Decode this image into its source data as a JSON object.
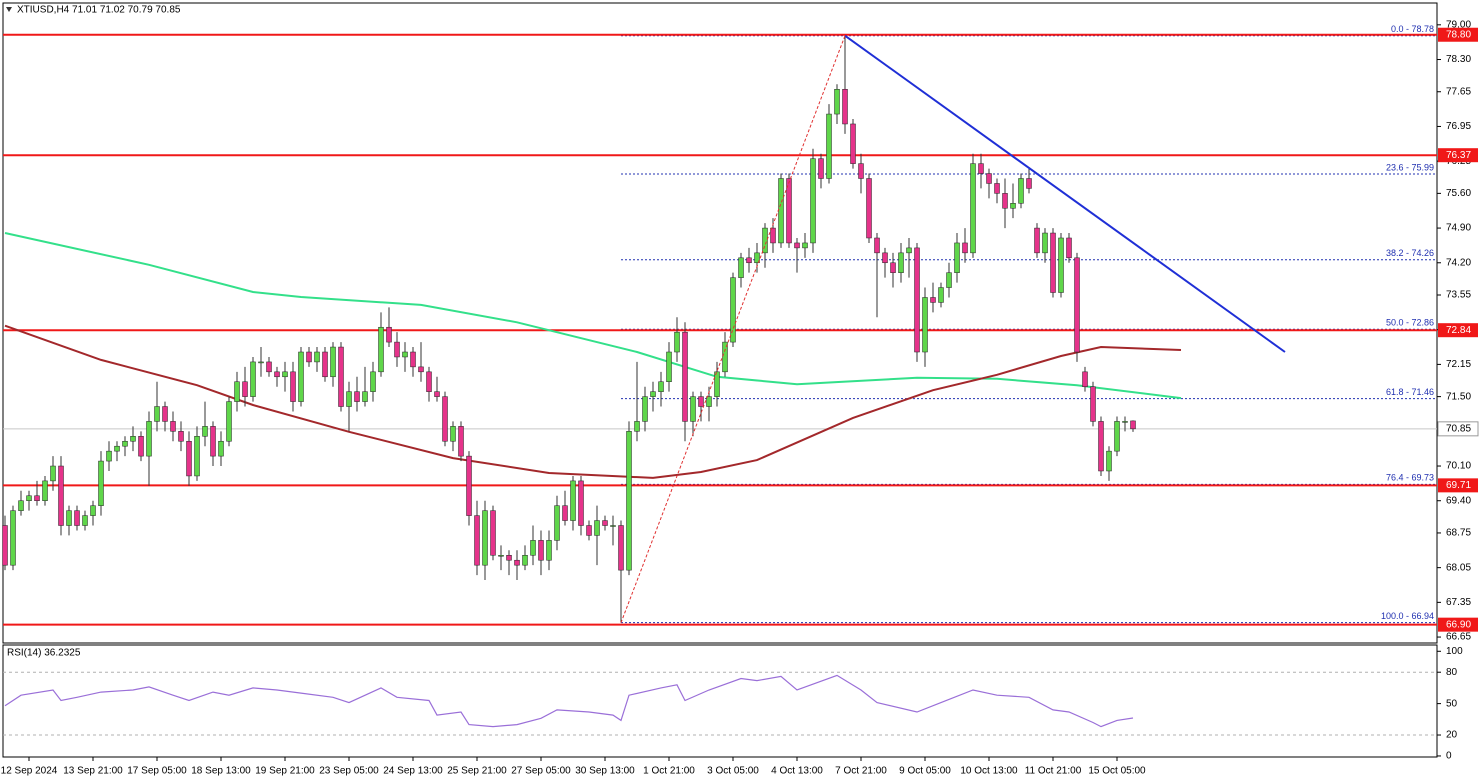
{
  "chart_data": [
    {
      "type": "candlestick",
      "title": "XTIUSD,H4  71.01 71.02 70.79 70.85",
      "up_color": "#5fd64a",
      "down_color": "#e5338a",
      "wick_color": "#333333",
      "xlim": [
        -0.625,
        179
      ],
      "xticks": [
        {
          "value": 3,
          "label": "12 Sep 2024"
        },
        {
          "value": 11,
          "label": "13 Sep 21:00"
        },
        {
          "value": 19,
          "label": "17 Sep 05:00"
        },
        {
          "value": 27,
          "label": "18 Sep 13:00"
        },
        {
          "value": 35,
          "label": "19 Sep 21:00"
        },
        {
          "value": 43,
          "label": "23 Sep 05:00"
        },
        {
          "value": 51,
          "label": "24 Sep 13:00"
        },
        {
          "value": 59,
          "label": "25 Sep 21:00"
        },
        {
          "value": 67,
          "label": "27 Sep 05:00"
        },
        {
          "value": 75,
          "label": "30 Sep 13:00"
        },
        {
          "value": 83,
          "label": "1 Oct 21:00"
        },
        {
          "value": 91,
          "label": "3 Oct 05:00"
        },
        {
          "value": 99,
          "label": "4 Oct 13:00"
        },
        {
          "value": 107,
          "label": "7 Oct 21:00"
        },
        {
          "value": 115,
          "label": "9 Oct 05:00"
        },
        {
          "value": 123,
          "label": "10 Oct 13:00"
        },
        {
          "value": 131,
          "label": "11 Oct 21:00"
        },
        {
          "value": 139,
          "label": "15 Oct 05:00"
        }
      ],
      "ylim": [
        66.53,
        79.42
      ],
      "yticks": [
        {
          "value": 79.0,
          "label": "79.00"
        },
        {
          "value": 78.3,
          "label": "78.30"
        },
        {
          "value": 77.65,
          "label": "77.65"
        },
        {
          "value": 76.95,
          "label": "76.95"
        },
        {
          "value": 76.25,
          "label": "76.25"
        },
        {
          "value": 75.6,
          "label": "75.60"
        },
        {
          "value": 74.9,
          "label": "74.90"
        },
        {
          "value": 74.2,
          "label": "74.20"
        },
        {
          "value": 73.55,
          "label": "73.55"
        },
        {
          "value": 72.85,
          "label": "72.85"
        },
        {
          "value": 72.15,
          "label": "72.15"
        },
        {
          "value": 71.5,
          "label": "71.50"
        },
        {
          "value": 70.8,
          "label": "70.80"
        },
        {
          "value": 70.1,
          "label": "70.10"
        },
        {
          "value": 69.4,
          "label": "69.40"
        },
        {
          "value": 68.75,
          "label": "68.75"
        },
        {
          "value": 68.05,
          "label": "68.05"
        },
        {
          "value": 67.35,
          "label": "67.35"
        },
        {
          "value": 66.65,
          "label": "66.65"
        }
      ],
      "candles": [
        [
          68.9,
          69.1,
          68.0,
          68.1
        ],
        [
          68.1,
          69.3,
          68.0,
          69.2
        ],
        [
          69.2,
          69.6,
          69.1,
          69.4
        ],
        [
          69.4,
          69.6,
          69.2,
          69.5
        ],
        [
          69.5,
          69.8,
          69.3,
          69.4
        ],
        [
          69.4,
          69.9,
          69.3,
          69.8
        ],
        [
          69.8,
          70.3,
          69.6,
          70.1
        ],
        [
          70.1,
          70.3,
          68.7,
          68.9
        ],
        [
          68.9,
          69.3,
          68.7,
          69.2
        ],
        [
          69.2,
          69.3,
          68.8,
          68.9
        ],
        [
          68.9,
          69.2,
          68.8,
          69.1
        ],
        [
          69.1,
          69.4,
          68.9,
          69.3
        ],
        [
          69.3,
          70.4,
          69.1,
          70.2
        ],
        [
          70.2,
          70.6,
          70.0,
          70.4
        ],
        [
          70.4,
          70.6,
          70.2,
          70.5
        ],
        [
          70.5,
          70.7,
          70.3,
          70.6
        ],
        [
          70.6,
          70.9,
          70.4,
          70.7
        ],
        [
          70.7,
          70.8,
          70.2,
          70.3
        ],
        [
          70.3,
          71.2,
          69.7,
          71.0
        ],
        [
          71.0,
          71.8,
          70.8,
          71.3
        ],
        [
          71.3,
          71.4,
          70.8,
          71.0
        ],
        [
          71.0,
          71.2,
          70.6,
          70.8
        ],
        [
          70.8,
          71.0,
          70.4,
          70.6
        ],
        [
          70.6,
          70.8,
          69.7,
          69.9
        ],
        [
          69.9,
          70.9,
          69.8,
          70.7
        ],
        [
          70.7,
          71.4,
          70.5,
          70.9
        ],
        [
          70.9,
          71.0,
          70.1,
          70.3
        ],
        [
          70.3,
          70.8,
          70.1,
          70.6
        ],
        [
          70.6,
          71.5,
          70.5,
          71.4
        ],
        [
          71.4,
          72.0,
          71.2,
          71.8
        ],
        [
          71.8,
          72.1,
          71.3,
          71.5
        ],
        [
          71.5,
          72.3,
          71.4,
          72.2
        ],
        [
          72.2,
          72.5,
          71.9,
          72.2
        ],
        [
          72.2,
          72.3,
          71.9,
          72.0
        ],
        [
          72.0,
          72.1,
          71.7,
          71.9
        ],
        [
          71.9,
          72.2,
          71.6,
          72.0
        ],
        [
          72.0,
          72.2,
          71.2,
          71.4
        ],
        [
          71.4,
          72.5,
          71.3,
          72.4
        ],
        [
          72.4,
          72.5,
          72.1,
          72.2
        ],
        [
          72.2,
          72.5,
          72.0,
          72.4
        ],
        [
          72.4,
          72.5,
          71.8,
          71.9
        ],
        [
          71.9,
          72.6,
          71.7,
          72.5
        ],
        [
          72.5,
          72.6,
          71.2,
          71.3
        ],
        [
          71.3,
          71.8,
          70.8,
          71.6
        ],
        [
          71.6,
          71.9,
          71.2,
          71.4
        ],
        [
          71.4,
          72.1,
          71.3,
          71.6
        ],
        [
          71.6,
          72.2,
          71.4,
          72.0
        ],
        [
          72.0,
          73.2,
          71.9,
          72.9
        ],
        [
          72.9,
          73.3,
          72.5,
          72.6
        ],
        [
          72.6,
          72.8,
          72.1,
          72.3
        ],
        [
          72.3,
          72.6,
          72.0,
          72.4
        ],
        [
          72.4,
          72.5,
          71.9,
          72.1
        ],
        [
          72.1,
          72.6,
          71.8,
          72.0
        ],
        [
          72.0,
          72.1,
          71.4,
          71.6
        ],
        [
          71.6,
          71.9,
          71.4,
          71.5
        ],
        [
          71.5,
          71.6,
          70.5,
          70.6
        ],
        [
          70.6,
          71.0,
          70.4,
          70.9
        ],
        [
          70.9,
          71.0,
          70.2,
          70.3
        ],
        [
          70.3,
          70.4,
          68.9,
          69.1
        ],
        [
          69.1,
          69.4,
          67.9,
          68.1
        ],
        [
          68.1,
          69.4,
          67.8,
          69.2
        ],
        [
          69.2,
          69.3,
          68.2,
          68.3
        ],
        [
          68.3,
          68.5,
          68.0,
          68.3
        ],
        [
          68.3,
          68.4,
          67.9,
          68.2
        ],
        [
          68.2,
          68.4,
          67.8,
          68.1
        ],
        [
          68.1,
          68.5,
          68.0,
          68.3
        ],
        [
          68.3,
          68.9,
          68.1,
          68.6
        ],
        [
          68.6,
          68.8,
          67.9,
          68.2
        ],
        [
          68.2,
          68.8,
          68.0,
          68.6
        ],
        [
          68.6,
          69.5,
          68.4,
          69.3
        ],
        [
          69.3,
          69.6,
          68.9,
          69.0
        ],
        [
          69.0,
          69.9,
          68.8,
          69.8
        ],
        [
          69.8,
          69.9,
          68.7,
          68.9
        ],
        [
          68.9,
          69.0,
          68.6,
          68.7
        ],
        [
          68.7,
          69.3,
          68.1,
          69.0
        ],
        [
          69.0,
          69.1,
          68.8,
          68.9
        ],
        [
          68.9,
          69.1,
          68.5,
          68.9
        ],
        [
          68.9,
          69.0,
          66.94,
          68.0
        ],
        [
          68.0,
          71.0,
          67.9,
          70.8
        ],
        [
          70.8,
          72.2,
          70.6,
          71.0
        ],
        [
          71.0,
          71.7,
          70.8,
          71.5
        ],
        [
          71.5,
          71.8,
          71.2,
          71.6
        ],
        [
          71.6,
          72.0,
          71.3,
          71.8
        ],
        [
          71.8,
          72.6,
          71.6,
          72.4
        ],
        [
          72.4,
          73.1,
          72.2,
          72.8
        ],
        [
          72.8,
          73.0,
          70.6,
          71.0
        ],
        [
          71.0,
          71.6,
          70.7,
          71.5
        ],
        [
          71.5,
          71.6,
          71.0,
          71.3
        ],
        [
          71.3,
          71.7,
          71.0,
          71.5
        ],
        [
          71.5,
          72.2,
          71.3,
          72.0
        ],
        [
          72.0,
          72.8,
          71.9,
          72.6
        ],
        [
          72.6,
          74.0,
          72.5,
          73.9
        ],
        [
          73.9,
          74.4,
          73.7,
          74.3
        ],
        [
          74.3,
          74.5,
          74.0,
          74.2
        ],
        [
          74.2,
          74.6,
          74.0,
          74.4
        ],
        [
          74.4,
          75.0,
          74.1,
          74.9
        ],
        [
          74.9,
          75.1,
          74.4,
          74.6
        ],
        [
          74.6,
          76.0,
          74.5,
          75.9
        ],
        [
          75.9,
          76.0,
          74.5,
          74.6
        ],
        [
          74.6,
          74.7,
          74.0,
          74.5
        ],
        [
          74.5,
          74.8,
          74.3,
          74.6
        ],
        [
          74.6,
          76.5,
          74.4,
          76.3
        ],
        [
          76.3,
          76.4,
          75.7,
          75.9
        ],
        [
          75.9,
          77.4,
          75.8,
          77.2
        ],
        [
          77.2,
          77.8,
          77.0,
          77.7
        ],
        [
          77.7,
          78.78,
          76.8,
          77.0
        ],
        [
          77.0,
          77.1,
          76.1,
          76.2
        ],
        [
          76.2,
          76.4,
          75.6,
          75.9
        ],
        [
          75.9,
          76.0,
          74.6,
          74.7
        ],
        [
          74.7,
          74.8,
          73.1,
          74.4
        ],
        [
          74.4,
          74.5,
          73.9,
          74.2
        ],
        [
          74.2,
          74.4,
          73.7,
          74.0
        ],
        [
          74.0,
          74.6,
          73.8,
          74.4
        ],
        [
          74.4,
          74.7,
          73.9,
          74.5
        ],
        [
          74.5,
          74.6,
          72.2,
          72.4
        ],
        [
          72.4,
          73.7,
          72.1,
          73.5
        ],
        [
          73.5,
          73.8,
          73.2,
          73.4
        ],
        [
          73.4,
          73.8,
          73.3,
          73.7
        ],
        [
          73.7,
          74.2,
          73.5,
          74.0
        ],
        [
          74.0,
          74.8,
          73.8,
          74.6
        ],
        [
          74.6,
          74.9,
          74.2,
          74.4
        ],
        [
          74.4,
          76.4,
          74.3,
          76.2
        ],
        [
          76.2,
          76.4,
          75.7,
          76.0
        ],
        [
          76.0,
          76.1,
          75.5,
          75.8
        ],
        [
          75.8,
          75.9,
          75.4,
          75.6
        ],
        [
          75.6,
          75.9,
          74.9,
          75.3
        ],
        [
          75.3,
          75.8,
          75.1,
          75.4
        ],
        [
          75.4,
          76.0,
          75.3,
          75.9
        ],
        [
          75.9,
          76.1,
          75.6,
          75.7
        ],
        [
          74.9,
          75.0,
          74.3,
          74.4
        ],
        [
          74.4,
          74.9,
          74.2,
          74.8
        ],
        [
          74.8,
          74.9,
          73.5,
          73.6
        ],
        [
          73.6,
          74.8,
          73.5,
          74.7
        ],
        [
          74.7,
          74.8,
          74.2,
          74.3
        ],
        [
          74.3,
          74.4,
          72.2,
          72.4
        ],
        [
          72.0,
          72.1,
          71.6,
          71.7
        ],
        [
          71.7,
          71.8,
          70.9,
          71.0
        ],
        [
          71.0,
          71.1,
          69.9,
          70.0
        ],
        [
          70.0,
          70.5,
          69.8,
          70.4
        ],
        [
          70.4,
          71.1,
          70.3,
          71.0
        ],
        [
          71.0,
          71.1,
          70.8,
          71.0
        ],
        [
          71.01,
          71.02,
          70.79,
          70.85
        ]
      ],
      "overlays": [
        {
          "color": "#33e08a",
          "x": [
            0,
            18,
            31,
            37,
            52,
            64,
            79,
            89,
            99,
            114,
            124,
            134,
            147
          ],
          "values": [
            74.8,
            74.16,
            73.61,
            73.51,
            73.35,
            73.0,
            72.4,
            71.9,
            71.75,
            71.88,
            71.86,
            71.73,
            71.47
          ]
        },
        {
          "color": "#a3282b",
          "x": [
            0,
            12,
            24,
            31,
            43,
            56,
            68,
            81,
            87,
            94,
            106,
            116,
            124,
            132,
            137,
            147
          ],
          "values": [
            72.93,
            72.24,
            71.73,
            71.33,
            70.79,
            70.26,
            69.96,
            69.86,
            69.98,
            70.22,
            71.07,
            71.63,
            71.94,
            72.32,
            72.5,
            72.44
          ]
        }
      ],
      "trendlines": [
        {
          "color": "#1f2fd6",
          "style": "solid",
          "x": [
            105,
            160
          ],
          "values": [
            78.78,
            72.4
          ]
        },
        {
          "color": "#e03030",
          "style": "dashed",
          "x": [
            77,
            105
          ],
          "values": [
            66.94,
            78.78
          ]
        }
      ],
      "hlines_color": "#f01818",
      "hlines": [
        {
          "value": 78.8,
          "label": "78.80"
        },
        {
          "value": 76.37,
          "label": "76.37"
        },
        {
          "value": 72.84,
          "label": "72.84"
        },
        {
          "value": 69.71,
          "label": "69.71"
        },
        {
          "value": 66.9,
          "label": "66.90"
        }
      ],
      "fib_color": "#2030b0",
      "fib_start": 77,
      "fib": [
        {
          "value": 78.78,
          "label": "0.0 - 78.78"
        },
        {
          "value": 75.99,
          "label": "23.6 - 75.99"
        },
        {
          "value": 74.26,
          "label": "38.2 - 74.26"
        },
        {
          "value": 72.86,
          "label": "50.0 - 72.86"
        },
        {
          "value": 71.46,
          "label": "61.8 - 71.46"
        },
        {
          "value": 69.73,
          "label": "76.4 - 69.73"
        },
        {
          "value": 66.94,
          "label": "100.0 - 66.94"
        }
      ],
      "current_price": {
        "value": 70.85,
        "label": "70.85"
      }
    },
    {
      "type": "line",
      "title": "RSI(14) 36.2325",
      "color": "#9a6fd8",
      "x": [
        0,
        2,
        6,
        7,
        9,
        12,
        16,
        18,
        21,
        23,
        26,
        28,
        31,
        34,
        37,
        41,
        43,
        47,
        49,
        53,
        54,
        57,
        58,
        61,
        64,
        67,
        69,
        73,
        76,
        77,
        78,
        82,
        84,
        85,
        88,
        92,
        94,
        97,
        99,
        104,
        107,
        109,
        114,
        117,
        121,
        124,
        128,
        131,
        133,
        136,
        137,
        139,
        141
      ],
      "values": [
        48,
        58,
        63,
        53,
        56,
        61,
        63,
        66,
        58,
        53,
        61,
        58,
        65,
        63,
        60,
        56,
        51,
        65,
        56,
        53,
        39,
        42,
        30,
        28,
        30,
        36,
        44,
        42,
        39,
        34,
        58,
        65,
        68,
        53,
        63,
        74,
        72,
        76,
        63,
        77,
        63,
        51,
        42,
        51,
        63,
        58,
        56,
        44,
        42,
        32,
        28,
        34,
        36.2325
      ],
      "ylim": [
        -1,
        106
      ],
      "yticks": [
        0,
        20,
        50,
        80,
        100
      ],
      "levels": [
        80,
        20
      ]
    }
  ]
}
